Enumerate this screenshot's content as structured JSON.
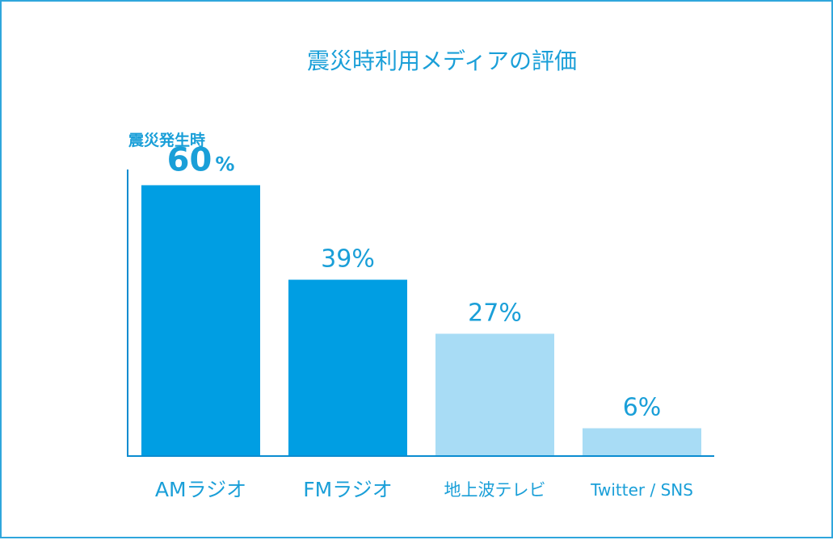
{
  "chart_data": {
    "type": "bar",
    "title": "震災時利用メディアの評価",
    "ylabel": "震災発生時",
    "xlabel": "",
    "categories": [
      "AMラジオ",
      "FMラジオ",
      "地上波テレビ",
      "Twitter / SNS"
    ],
    "values": [
      60,
      39,
      27,
      6
    ],
    "value_labels": [
      {
        "number": "60",
        "unit": "%"
      },
      {
        "number": "39",
        "unit": "%"
      },
      {
        "number": "27",
        "unit": "%"
      },
      {
        "number": "6",
        "unit": "%"
      }
    ],
    "ylim": [
      0,
      66
    ],
    "grid": false,
    "colors": {
      "primary": "#009ee3",
      "secondary": "#a8dcf5",
      "text": "#1a9fd8",
      "axis": "#0a8cd0",
      "border": "#2fa6dc"
    },
    "bar_color_keys": [
      "primary",
      "primary",
      "secondary",
      "secondary"
    ]
  }
}
